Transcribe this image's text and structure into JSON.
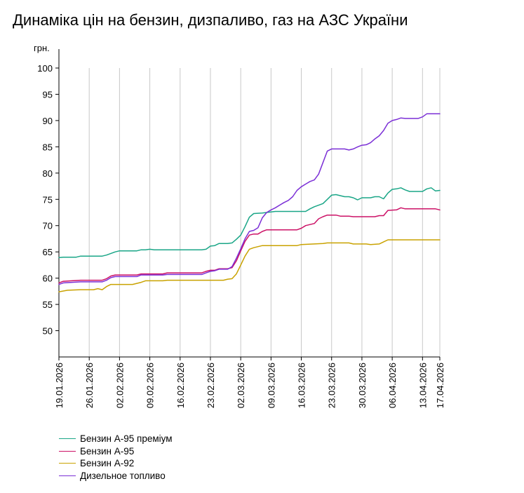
{
  "chart_data": {
    "type": "line",
    "title": "Динаміка цін на бензин, дизпаливо, газ на АЗС України",
    "ylabel": "грн.",
    "ylim": [
      45,
      100
    ],
    "yticks": [
      50,
      55,
      60,
      65,
      70,
      75,
      80,
      85,
      90,
      95,
      100
    ],
    "xlim": [
      "2026-01-19",
      "2026-04-17"
    ],
    "xticks": [
      "19.01.2026",
      "26.01.2026",
      "02.02.2026",
      "09.02.2026",
      "16.02.2026",
      "23.02.2026",
      "02.03.2026",
      "09.03.2026",
      "16.03.2026",
      "23.03.2026",
      "30.03.2026",
      "06.04.2026",
      "13.04.2026",
      "17.04.2026"
    ],
    "grid": "vertical",
    "legend_position": "bottom-left",
    "series": [
      {
        "name": "Бензин А-95 преміум",
        "color": "#1aa687",
        "points": [
          [
            "2026-01-19",
            63.9
          ],
          [
            "2026-01-20",
            64.0
          ],
          [
            "2026-01-23",
            64.0
          ],
          [
            "2026-01-24",
            64.2
          ],
          [
            "2026-01-29",
            64.2
          ],
          [
            "2026-01-30",
            64.4
          ],
          [
            "2026-02-01",
            65.0
          ],
          [
            "2026-02-02",
            65.2
          ],
          [
            "2026-02-06",
            65.2
          ],
          [
            "2026-02-07",
            65.4
          ],
          [
            "2026-02-08",
            65.4
          ],
          [
            "2026-02-09",
            65.5
          ],
          [
            "2026-02-10",
            65.4
          ],
          [
            "2026-02-20",
            65.4
          ],
          [
            "2026-02-21",
            65.4
          ],
          [
            "2026-02-22",
            65.5
          ],
          [
            "2026-02-23",
            66.1
          ],
          [
            "2026-02-24",
            66.2
          ],
          [
            "2026-02-25",
            66.6
          ],
          [
            "2026-02-27",
            66.6
          ],
          [
            "2026-02-28",
            66.7
          ],
          [
            "2026-03-01",
            67.4
          ],
          [
            "2026-03-02",
            68.2
          ],
          [
            "2026-03-03",
            69.8
          ],
          [
            "2026-03-04",
            71.6
          ],
          [
            "2026-03-05",
            72.3
          ],
          [
            "2026-03-07",
            72.4
          ],
          [
            "2026-03-09",
            72.6
          ],
          [
            "2026-03-10",
            72.7
          ],
          [
            "2026-03-17",
            72.7
          ],
          [
            "2026-03-18",
            73.2
          ],
          [
            "2026-03-19",
            73.6
          ],
          [
            "2026-03-21",
            74.2
          ],
          [
            "2026-03-22",
            75.0
          ],
          [
            "2026-03-23",
            75.8
          ],
          [
            "2026-03-24",
            75.9
          ],
          [
            "2026-03-25",
            75.7
          ],
          [
            "2026-03-26",
            75.5
          ],
          [
            "2026-03-27",
            75.5
          ],
          [
            "2026-03-28",
            75.3
          ],
          [
            "2026-03-29",
            74.9
          ],
          [
            "2026-03-30",
            75.3
          ],
          [
            "2026-04-01",
            75.3
          ],
          [
            "2026-04-02",
            75.5
          ],
          [
            "2026-04-03",
            75.5
          ],
          [
            "2026-04-04",
            75.1
          ],
          [
            "2026-04-05",
            76.2
          ],
          [
            "2026-04-06",
            76.9
          ],
          [
            "2026-04-07",
            77.0
          ],
          [
            "2026-04-08",
            77.2
          ],
          [
            "2026-04-09",
            76.8
          ],
          [
            "2026-04-10",
            76.5
          ],
          [
            "2026-04-13",
            76.5
          ],
          [
            "2026-04-14",
            77.0
          ],
          [
            "2026-04-15",
            77.2
          ],
          [
            "2026-04-16",
            76.6
          ],
          [
            "2026-04-17",
            76.7
          ]
        ]
      },
      {
        "name": "Бензин А-95",
        "color": "#cc1166",
        "points": [
          [
            "2026-01-19",
            59.1
          ],
          [
            "2026-01-20",
            59.4
          ],
          [
            "2026-01-24",
            59.6
          ],
          [
            "2026-01-29",
            59.6
          ],
          [
            "2026-01-30",
            59.9
          ],
          [
            "2026-01-31",
            60.4
          ],
          [
            "2026-02-01",
            60.6
          ],
          [
            "2026-02-06",
            60.6
          ],
          [
            "2026-02-07",
            60.8
          ],
          [
            "2026-02-12",
            60.8
          ],
          [
            "2026-02-13",
            61.0
          ],
          [
            "2026-02-20",
            61.0
          ],
          [
            "2026-02-21",
            61.0
          ],
          [
            "2026-02-22",
            61.3
          ],
          [
            "2026-02-23",
            61.5
          ],
          [
            "2026-02-24",
            61.5
          ],
          [
            "2026-02-25",
            61.8
          ],
          [
            "2026-02-27",
            61.8
          ],
          [
            "2026-02-28",
            62.0
          ],
          [
            "2026-03-01",
            63.3
          ],
          [
            "2026-03-02",
            65.2
          ],
          [
            "2026-03-03",
            67.0
          ],
          [
            "2026-03-04",
            68.2
          ],
          [
            "2026-03-05",
            68.4
          ],
          [
            "2026-03-06",
            68.4
          ],
          [
            "2026-03-07",
            68.9
          ],
          [
            "2026-03-08",
            69.2
          ],
          [
            "2026-03-15",
            69.2
          ],
          [
            "2026-03-16",
            69.5
          ],
          [
            "2026-03-17",
            70.0
          ],
          [
            "2026-03-19",
            70.4
          ],
          [
            "2026-03-20",
            71.3
          ],
          [
            "2026-03-21",
            71.7
          ],
          [
            "2026-03-22",
            72.0
          ],
          [
            "2026-03-24",
            72.0
          ],
          [
            "2026-03-25",
            71.8
          ],
          [
            "2026-03-27",
            71.8
          ],
          [
            "2026-03-28",
            71.7
          ],
          [
            "2026-04-02",
            71.7
          ],
          [
            "2026-04-03",
            71.9
          ],
          [
            "2026-04-04",
            71.9
          ],
          [
            "2026-04-05",
            72.9
          ],
          [
            "2026-04-07",
            73.0
          ],
          [
            "2026-04-08",
            73.4
          ],
          [
            "2026-04-09",
            73.2
          ],
          [
            "2026-04-16",
            73.2
          ],
          [
            "2026-04-17",
            73.0
          ]
        ]
      },
      {
        "name": "Бензин А-92",
        "color": "#c9a200",
        "points": [
          [
            "2026-01-19",
            57.4
          ],
          [
            "2026-01-21",
            57.7
          ],
          [
            "2026-01-24",
            57.8
          ],
          [
            "2026-01-27",
            57.8
          ],
          [
            "2026-01-28",
            58.0
          ],
          [
            "2026-01-29",
            57.8
          ],
          [
            "2026-01-30",
            58.4
          ],
          [
            "2026-01-31",
            58.8
          ],
          [
            "2026-02-05",
            58.8
          ],
          [
            "2026-02-07",
            59.2
          ],
          [
            "2026-02-08",
            59.5
          ],
          [
            "2026-02-12",
            59.5
          ],
          [
            "2026-02-13",
            59.6
          ],
          [
            "2026-02-26",
            59.6
          ],
          [
            "2026-02-27",
            59.8
          ],
          [
            "2026-02-28",
            59.9
          ],
          [
            "2026-03-01",
            60.8
          ],
          [
            "2026-03-02",
            62.5
          ],
          [
            "2026-03-03",
            64.2
          ],
          [
            "2026-03-04",
            65.5
          ],
          [
            "2026-03-05",
            65.8
          ],
          [
            "2026-03-06",
            66.0
          ],
          [
            "2026-03-07",
            66.2
          ],
          [
            "2026-03-15",
            66.2
          ],
          [
            "2026-03-16",
            66.4
          ],
          [
            "2026-03-21",
            66.6
          ],
          [
            "2026-03-22",
            66.7
          ],
          [
            "2026-03-27",
            66.7
          ],
          [
            "2026-03-28",
            66.5
          ],
          [
            "2026-03-31",
            66.5
          ],
          [
            "2026-04-01",
            66.4
          ],
          [
            "2026-04-03",
            66.5
          ],
          [
            "2026-04-04",
            66.9
          ],
          [
            "2026-04-05",
            67.3
          ],
          [
            "2026-04-17",
            67.3
          ]
        ]
      },
      {
        "name": "Дизельное топливо",
        "color": "#7b2fd6",
        "points": [
          [
            "2026-01-19",
            58.8
          ],
          [
            "2026-01-20",
            59.1
          ],
          [
            "2026-01-24",
            59.3
          ],
          [
            "2026-01-29",
            59.3
          ],
          [
            "2026-01-30",
            59.6
          ],
          [
            "2026-01-31",
            60.1
          ],
          [
            "2026-02-01",
            60.3
          ],
          [
            "2026-02-06",
            60.3
          ],
          [
            "2026-02-07",
            60.6
          ],
          [
            "2026-02-12",
            60.6
          ],
          [
            "2026-02-13",
            60.7
          ],
          [
            "2026-02-20",
            60.7
          ],
          [
            "2026-02-21",
            60.7
          ],
          [
            "2026-02-22",
            61.0
          ],
          [
            "2026-02-23",
            61.3
          ],
          [
            "2026-02-24",
            61.4
          ],
          [
            "2026-02-25",
            61.7
          ],
          [
            "2026-02-27",
            61.7
          ],
          [
            "2026-02-28",
            62.2
          ],
          [
            "2026-03-01",
            63.8
          ],
          [
            "2026-03-02",
            65.6
          ],
          [
            "2026-03-03",
            67.5
          ],
          [
            "2026-03-04",
            68.9
          ],
          [
            "2026-03-05",
            69.1
          ],
          [
            "2026-03-06",
            69.6
          ],
          [
            "2026-03-07",
            71.5
          ],
          [
            "2026-03-08",
            72.5
          ],
          [
            "2026-03-09",
            73.0
          ],
          [
            "2026-03-10",
            73.4
          ],
          [
            "2026-03-11",
            73.9
          ],
          [
            "2026-03-12",
            74.4
          ],
          [
            "2026-03-13",
            74.8
          ],
          [
            "2026-03-14",
            75.5
          ],
          [
            "2026-03-15",
            76.7
          ],
          [
            "2026-03-16",
            77.4
          ],
          [
            "2026-03-17",
            77.9
          ],
          [
            "2026-03-18",
            78.4
          ],
          [
            "2026-03-19",
            78.7
          ],
          [
            "2026-03-20",
            79.8
          ],
          [
            "2026-03-21",
            82.0
          ],
          [
            "2026-03-22",
            84.2
          ],
          [
            "2026-03-23",
            84.6
          ],
          [
            "2026-03-26",
            84.6
          ],
          [
            "2026-03-27",
            84.4
          ],
          [
            "2026-03-28",
            84.6
          ],
          [
            "2026-03-29",
            85.0
          ],
          [
            "2026-03-30",
            85.3
          ],
          [
            "2026-03-31",
            85.4
          ],
          [
            "2026-04-01",
            85.8
          ],
          [
            "2026-04-02",
            86.5
          ],
          [
            "2026-04-03",
            87.1
          ],
          [
            "2026-04-04",
            88.1
          ],
          [
            "2026-04-05",
            89.5
          ],
          [
            "2026-04-06",
            90.0
          ],
          [
            "2026-04-07",
            90.2
          ],
          [
            "2026-04-08",
            90.5
          ],
          [
            "2026-04-09",
            90.4
          ],
          [
            "2026-04-12",
            90.4
          ],
          [
            "2026-04-13",
            90.7
          ],
          [
            "2026-04-14",
            91.3
          ],
          [
            "2026-04-17",
            91.3
          ]
        ]
      }
    ]
  }
}
